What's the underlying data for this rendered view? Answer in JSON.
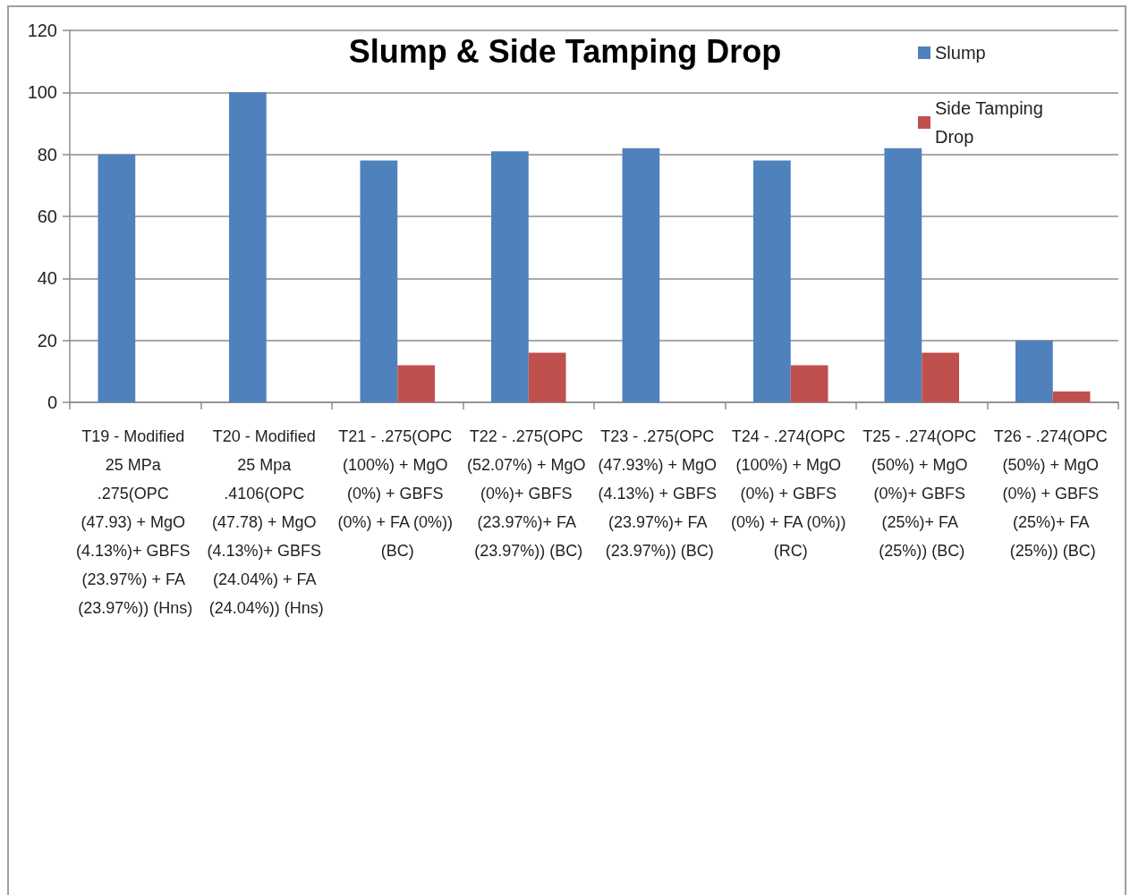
{
  "chart_data": {
    "type": "bar",
    "title": "Slump & Side Tamping Drop",
    "categories": [
      "T19 - Modified 25 MPa .275(OPC (47.93) + MgO (4.13%)+ GBFS (23.97%) + FA (23.97%)) (Hns)",
      "T20 - Modified 25 Mpa .4106(OPC (47.78) + MgO (4.13%)+ GBFS (24.04%) + FA (24.04%)) (Hns)",
      "T21 - .275(OPC (100%) + MgO (0%) + GBFS (0%) + FA (0%)) (BC)",
      "T22 - .275(OPC (52.07%) + MgO (0%)+ GBFS (23.97%)+ FA (23.97%)) (BC)",
      "T23 - .275(OPC (47.93%) + MgO (4.13%) + GBFS (23.97%)+ FA (23.97%)) (BC)",
      "T24 - .274(OPC (100%) + MgO (0%) + GBFS (0%) + FA (0%)) (RC)",
      "T25 - .274(OPC (50%) + MgO (0%)+ GBFS (25%)+ FA (25%)) (BC)",
      "T26 - .274(OPC (50%) + MgO (0%) + GBFS (25%)+ FA (25%)) (BC)"
    ],
    "series": [
      {
        "name": "Slump",
        "color": "#4f81bd",
        "values": [
          80,
          100,
          78,
          81,
          82,
          78,
          82,
          20
        ]
      },
      {
        "name": "Side Tamping Drop",
        "color": "#c0504d",
        "values": [
          null,
          null,
          12,
          16,
          null,
          12,
          16,
          3.5
        ]
      }
    ],
    "ylim": [
      0,
      120
    ],
    "yticks": [
      0,
      20,
      40,
      60,
      80,
      100,
      120
    ],
    "grid": "y",
    "legend": "top right"
  }
}
